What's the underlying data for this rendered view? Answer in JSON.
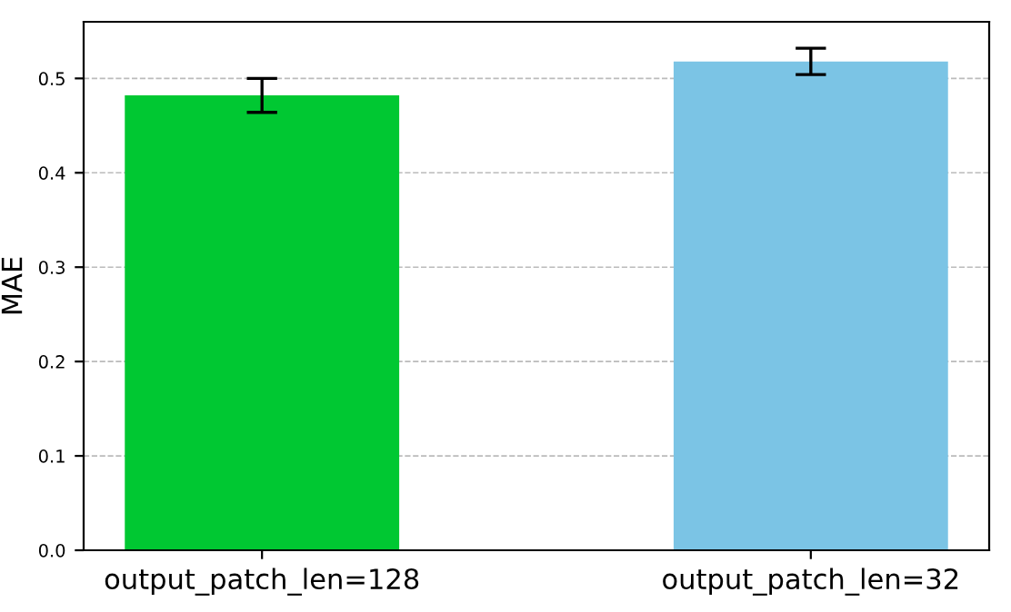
{
  "chart_data": {
    "type": "bar",
    "ylabel": "MAE",
    "categories": [
      "output_patch_len=128",
      "output_patch_len=32"
    ],
    "values": [
      0.482,
      0.518
    ],
    "errors": [
      0.018,
      0.014
    ],
    "colors": [
      "#00c832",
      "#7bc4e5"
    ],
    "ylim": [
      0,
      0.56
    ],
    "yticks": [
      {
        "value": 0,
        "label": "0.0"
      },
      0.1,
      0.2,
      0.3,
      0.4,
      0.5
    ],
    "grid": "y"
  }
}
